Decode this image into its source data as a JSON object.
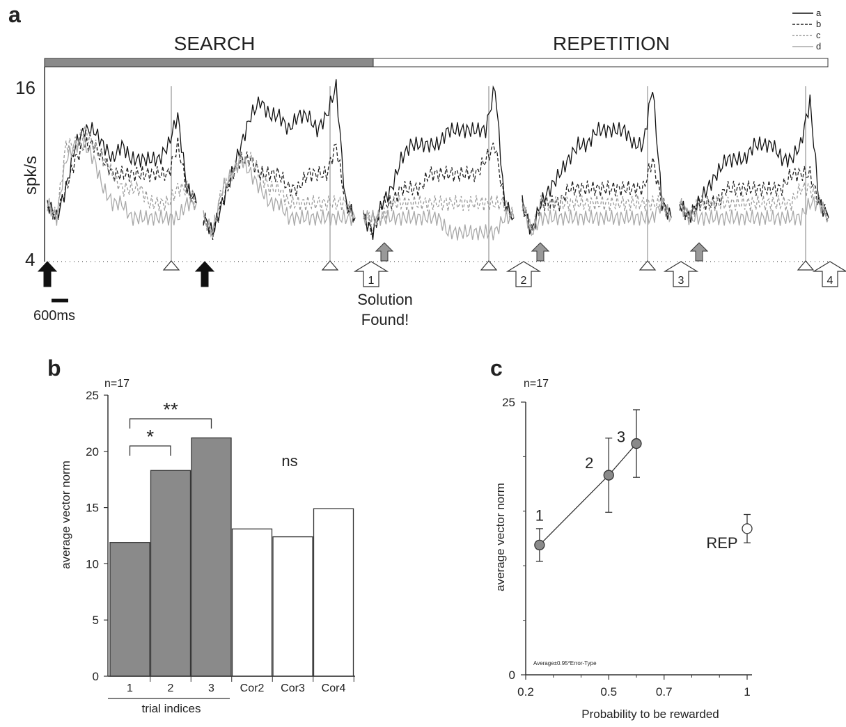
{
  "panels": {
    "a": {
      "letter": "a"
    },
    "b": {
      "letter": "b",
      "n_label": "n=17"
    },
    "c": {
      "letter": "c",
      "n_label": "n=17"
    }
  },
  "chart_data": [
    {
      "panel": "a",
      "type": "line",
      "phases": [
        {
          "label": "SEARCH",
          "color": "#8a8a8a"
        },
        {
          "label": "REPETITION",
          "color": "#ffffff"
        }
      ],
      "ylabel": "spk/s",
      "ylim": [
        4,
        16
      ],
      "ytick_labels": [
        "16",
        "4"
      ],
      "scale_bar_label": "600ms",
      "solution_label": [
        "Solution",
        "Found!"
      ],
      "trial_markers": [
        "1",
        "2",
        "3",
        "4"
      ],
      "legend": [
        "a",
        "b",
        "c",
        "d"
      ],
      "legend_placement": "top-right",
      "series": [
        {
          "name": "a",
          "color": "#111111",
          "dash": "none",
          "trials": [
            [
              8,
              7,
              9,
              12,
              13,
              13,
              12,
              11,
              12,
              11,
              11,
              11,
              11,
              12,
              14,
              9,
              8
            ],
            [
              7,
              6,
              8,
              10,
              12,
              14,
              15,
              14,
              14,
              13,
              14,
              14,
              13,
              14,
              16,
              8,
              7
            ],
            [
              7,
              6,
              8,
              9,
              11,
              12,
              12,
              12,
              12,
              13,
              13,
              13,
              13,
              13,
              16,
              8,
              7
            ],
            [
              8,
              6,
              8,
              9,
              10,
              11,
              12,
              12,
              13,
              13,
              13,
              13,
              12,
              12,
              16,
              8,
              7
            ],
            [
              8,
              7,
              8,
              9,
              10,
              11,
              11,
              11,
              12,
              12,
              12,
              11,
              11,
              12,
              15,
              8,
              7
            ]
          ]
        },
        {
          "name": "b",
          "color": "#222222",
          "dash": "5,3",
          "trials": [
            [
              8,
              7,
              9,
              11,
              12,
              12,
              11,
              10,
              10,
              10,
              10,
              10,
              10,
              10,
              12,
              9,
              8
            ],
            [
              7,
              6,
              8,
              10,
              11,
              11,
              10,
              10,
              10,
              9,
              9,
              10,
              10,
              10,
              12,
              8,
              7
            ],
            [
              7,
              6,
              8,
              8,
              9,
              9,
              9,
              10,
              10,
              10,
              10,
              10,
              10,
              11,
              12,
              8,
              7
            ],
            [
              8,
              6,
              8,
              8,
              8,
              9,
              9,
              9,
              9,
              9,
              9,
              9,
              9,
              9,
              11,
              8,
              7
            ],
            [
              8,
              7,
              8,
              8,
              8,
              9,
              9,
              9,
              9,
              9,
              9,
              9,
              10,
              10,
              10,
              8,
              7
            ]
          ]
        },
        {
          "name": "c",
          "color": "#9a9a9a",
          "dash": "4,3",
          "trials": [
            [
              8,
              7,
              12,
              12,
              13,
              12,
              11,
              10,
              9,
              9,
              9,
              8,
              8,
              8,
              9,
              9,
              8
            ],
            [
              7,
              6,
              9,
              10,
              11,
              11,
              10,
              9,
              9,
              8,
              8,
              8,
              8,
              8,
              8,
              8,
              7
            ],
            [
              7,
              7,
              7,
              8,
              8,
              8,
              8,
              8,
              8,
              8,
              8,
              8,
              8,
              8,
              8,
              8,
              7
            ],
            [
              8,
              6,
              8,
              8,
              8,
              8,
              8,
              8,
              8,
              8,
              8,
              8,
              8,
              8,
              8,
              8,
              7
            ],
            [
              8,
              7,
              8,
              8,
              8,
              8,
              8,
              8,
              8,
              8,
              8,
              8,
              8,
              9,
              9,
              8,
              7
            ]
          ]
        },
        {
          "name": "d",
          "color": "#a8a8a8",
          "dash": "none",
          "trials": [
            [
              8,
              7,
              11,
              12,
              12,
              11,
              9,
              8,
              8,
              7,
              7,
              7,
              7,
              7,
              7,
              8,
              8
            ],
            [
              7,
              6,
              9,
              10,
              11,
              10,
              9,
              8,
              8,
              7,
              7,
              7,
              7,
              7,
              7,
              7,
              7
            ],
            [
              7,
              7,
              7,
              7,
              7,
              7,
              7,
              7,
              7,
              6,
              6,
              6,
              6,
              6,
              6,
              7,
              7
            ],
            [
              8,
              6,
              7,
              7,
              7,
              7,
              7,
              7,
              7,
              7,
              7,
              7,
              7,
              7,
              7,
              8,
              7
            ],
            [
              8,
              7,
              7,
              7,
              7,
              7,
              7,
              7,
              7,
              7,
              7,
              7,
              7,
              7,
              8,
              8,
              7
            ]
          ]
        }
      ]
    },
    {
      "panel": "b",
      "type": "bar",
      "ylabel": "average vector norm",
      "xlabel": "trial indices",
      "ylim": [
        0,
        25
      ],
      "yticks": [
        0,
        5,
        10,
        15,
        20,
        25
      ],
      "categories": [
        "1",
        "2",
        "3",
        "Cor2",
        "Cor3",
        "Cor4"
      ],
      "values": [
        11.9,
        18.3,
        21.2,
        13.1,
        12.4,
        14.9
      ],
      "fills": [
        "#8a8a8a",
        "#8a8a8a",
        "#8a8a8a",
        "#ffffff",
        "#ffffff",
        "#ffffff"
      ],
      "annotations": [
        {
          "label": "*",
          "from": "1",
          "to": "2"
        },
        {
          "label": "**",
          "from": "1",
          "to": "3"
        },
        {
          "label": "ns"
        }
      ]
    },
    {
      "panel": "c",
      "type": "scatter",
      "ylabel": "average vector norm",
      "xlabel": "Probability to be rewarded",
      "xlim": [
        0.2,
        1.0
      ],
      "ylim": [
        0,
        25
      ],
      "xtick_values": [
        0.2,
        0.5,
        0.7,
        1.0
      ],
      "xtick_labels": [
        "0.2",
        "0.5",
        "0.7",
        "1"
      ],
      "ytick_values": [
        0,
        25
      ],
      "ytick_labels": [
        "0",
        "25"
      ],
      "watermark": "Average±0.95*Error-Type",
      "points": [
        {
          "label": "1",
          "x": 0.25,
          "y": 11.9,
          "err": 1.5,
          "fill": "#8a8a8a",
          "connected": true
        },
        {
          "label": "2",
          "x": 0.5,
          "y": 18.3,
          "err": 3.4,
          "fill": "#8a8a8a",
          "connected": true
        },
        {
          "label": "3",
          "x": 0.6,
          "y": 21.2,
          "err": 3.1,
          "fill": "#8a8a8a",
          "connected": true
        },
        {
          "label": "REP",
          "x": 1.0,
          "y": 13.4,
          "err": 1.3,
          "fill": "#ffffff",
          "connected": false
        }
      ]
    }
  ]
}
